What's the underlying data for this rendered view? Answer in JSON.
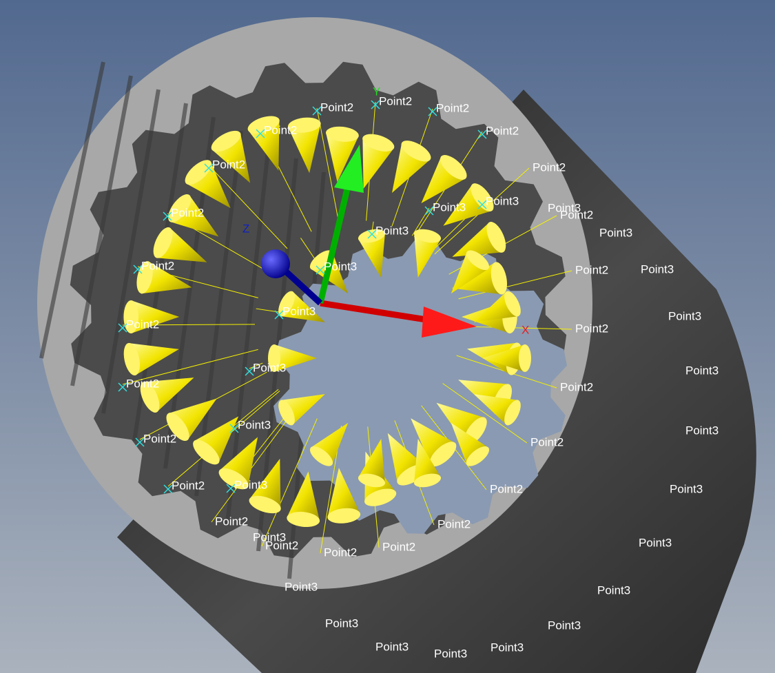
{
  "viewport": {
    "axis_labels": {
      "x": "X",
      "y": "Y",
      "z": "Z"
    },
    "point2_labels": [
      "Point2",
      "Point2",
      "Point2",
      "Point2",
      "Point2",
      "Point2",
      "Point2",
      "Point2",
      "Point2",
      "Point2",
      "Point2",
      "Point2",
      "Point2",
      "Point2",
      "Point2",
      "Point2",
      "Point2",
      "Point2",
      "Point2",
      "Point2",
      "Point2",
      "Point2",
      "Point2",
      "Point2"
    ],
    "point3_labels": [
      "Point3",
      "Point3",
      "Point3",
      "Point3",
      "Point3",
      "Point3",
      "Point3",
      "Point3",
      "Point3",
      "Point3",
      "Point3",
      "Point3",
      "Point3",
      "Point3",
      "Point3",
      "Point3",
      "Point3",
      "Point3",
      "Point3",
      "Point3",
      "Point3",
      "Point3",
      "Point3",
      "Point3"
    ]
  }
}
